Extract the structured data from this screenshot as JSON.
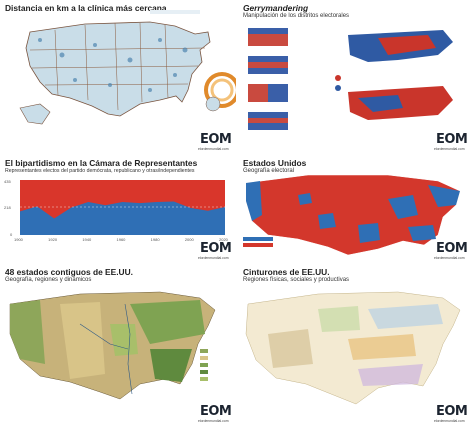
{
  "panels": {
    "distance": {
      "title": "Distancia en km a la clínica más cercana",
      "logo": "EOM",
      "logo_sub": "elordenmundial.com"
    },
    "gerry": {
      "title": "Gerrymandering",
      "subtitle": "Manipulación de los distritos electorales",
      "logo": "EOM",
      "logo_sub": "elordenmundial.com"
    },
    "bipartisan": {
      "title": "El bipartidismo en la Cámara de Representantes",
      "subtitle": "Representantes electos del partido demócrata, republicano y otras/independientes",
      "logo": "EOM",
      "logo_sub": "elordenmundial.com",
      "axis_ticks": [
        "1900",
        "1920",
        "1940",
        "1960",
        "1980",
        "2000",
        "2020"
      ],
      "y_labels": [
        "435",
        "218",
        "0"
      ]
    },
    "electoral": {
      "title": "Estados Unidos",
      "subtitle": "Geografía electoral",
      "logo": "EOM",
      "logo_sub": "elordenmundial.com"
    },
    "contiguous": {
      "title": "48 estados contiguos de EE.UU.",
      "subtitle": "Geografía, regiones y dinámicos",
      "logo": "EOM",
      "logo_sub": "elordenmundial.com"
    },
    "belts": {
      "title": "Cinturones de EE.UU.",
      "subtitle": "Regiones físicas, sociales y productivas",
      "logo": "EOM",
      "logo_sub": "elordenmundial.com"
    }
  },
  "colors": {
    "democrat": "#2f6fb5",
    "republican": "#d9362b",
    "map_land": "#c8dbe6",
    "belt_bg": "#f3ead2"
  },
  "house_share": {
    "years": [
      1900,
      1910,
      1920,
      1930,
      1940,
      1950,
      1960,
      1970,
      1980,
      1990,
      2000,
      2010,
      2020
    ],
    "democrat_fraction": [
      0.43,
      0.52,
      0.3,
      0.5,
      0.6,
      0.54,
      0.6,
      0.58,
      0.6,
      0.61,
      0.49,
      0.44,
      0.51
    ]
  }
}
